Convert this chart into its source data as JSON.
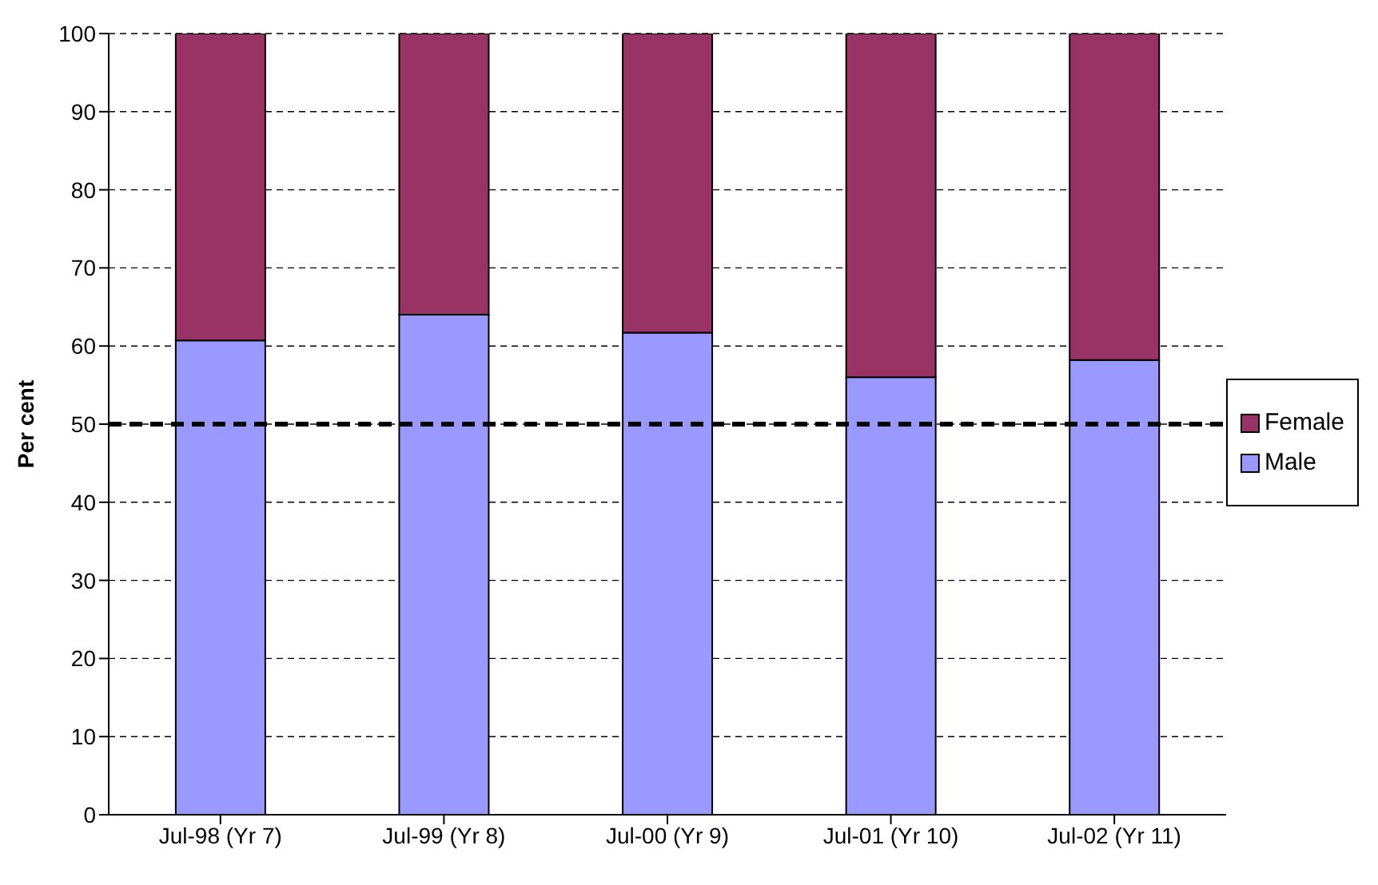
{
  "chart_data": {
    "type": "bar",
    "stacked": true,
    "ylabel": "Per cent",
    "categories": [
      "Jul-98 (Yr 7)",
      "Jul-99 (Yr 8)",
      "Jul-00 (Yr 9)",
      "Jul-01 (Yr 10)",
      "Jul-02 (Yr 11)"
    ],
    "series": [
      {
        "name": "Male",
        "color": "#9999ff",
        "values": [
          60.7,
          64,
          61.7,
          56,
          58.2
        ]
      },
      {
        "name": "Female",
        "color": "#993366",
        "values": [
          39.3,
          36,
          38.3,
          44,
          41.8
        ]
      }
    ],
    "ylim": [
      0,
      100
    ],
    "yticks": [
      0,
      10,
      20,
      30,
      40,
      50,
      60,
      70,
      80,
      90,
      100
    ],
    "grid": "y",
    "legend": "right",
    "ref_lines": [
      {
        "axis": "y",
        "value": 50,
        "color": "#000000",
        "line_style": "dashed"
      }
    ]
  }
}
